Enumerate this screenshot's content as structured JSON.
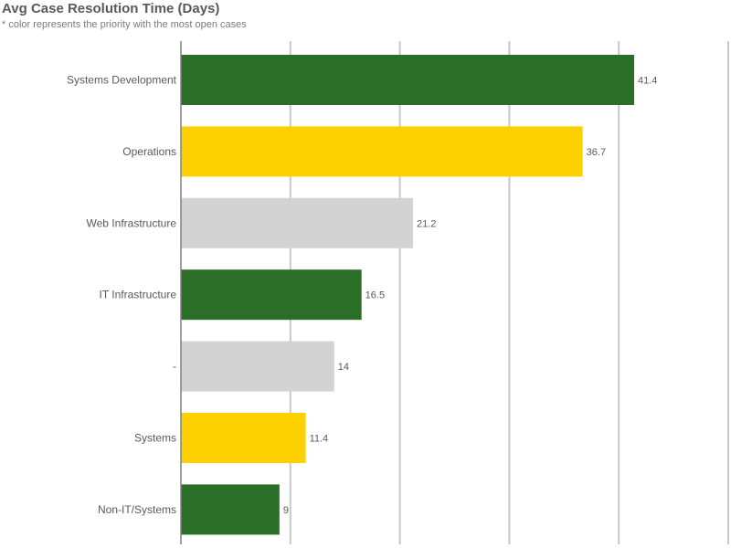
{
  "header": {
    "title": "Avg Case Resolution Time (Days)",
    "subtitle": "* color represents the priority with the most open cases"
  },
  "colors": {
    "green": "#2a6e27",
    "yellow": "#ffd000",
    "gray": "#d3d3d3",
    "gridline": "#c8c8c8",
    "axis": "#808080"
  },
  "chart_data": {
    "type": "bar",
    "orientation": "horizontal",
    "title": "Avg Case Resolution Time (Days)",
    "subtitle": "* color represents the priority with the most open cases",
    "xlabel": "",
    "ylabel": "",
    "categories": [
      "Systems Development",
      "Operations",
      "Web Infrastructure",
      "IT Infrastructure",
      "-",
      "Systems",
      "Non-IT/Systems"
    ],
    "values": [
      41.4,
      36.7,
      21.2,
      16.5,
      14,
      11.4,
      9
    ],
    "value_labels": [
      "41.4",
      "36.7",
      "21.2",
      "16.5",
      "14",
      "11.4",
      "9"
    ],
    "bar_colors": [
      "green",
      "yellow",
      "gray",
      "green",
      "gray",
      "yellow",
      "green"
    ],
    "xlim": [
      0,
      50
    ],
    "gridlines": [
      10,
      20,
      30,
      40,
      50
    ],
    "grid": true,
    "legend": false
  }
}
